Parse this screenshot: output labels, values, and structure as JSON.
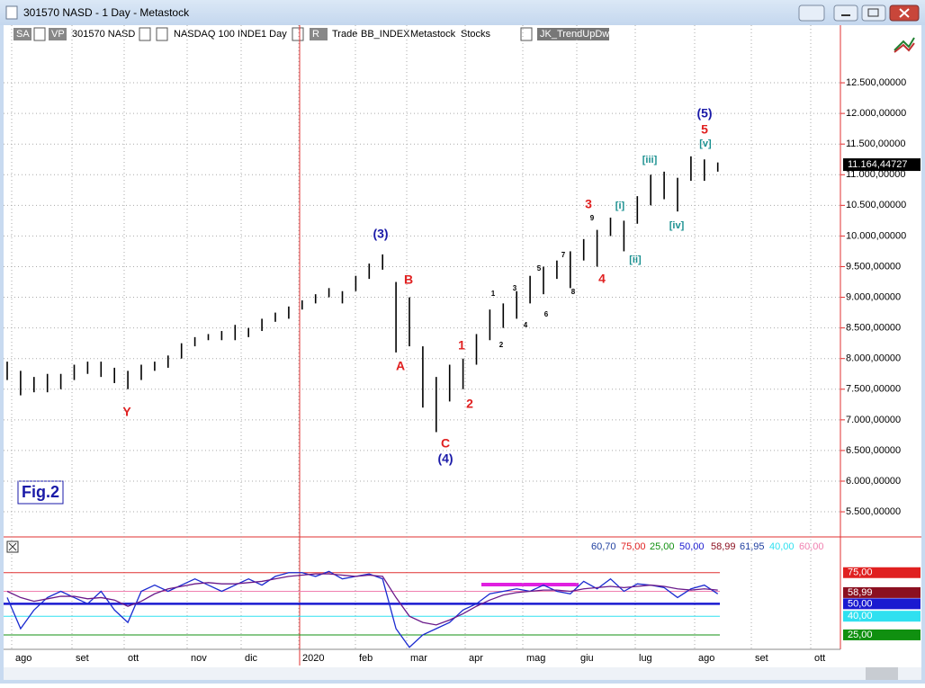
{
  "window": {
    "title": "301570 NASD - 1 Day - Metastock"
  },
  "toolbar": [
    "SA",
    "VP",
    "301570 NASD",
    "NASDAQ 100 INDE",
    "1 Day",
    "R",
    "Trade",
    "BB_INDEX",
    "Metastock",
    "Stocks",
    "JK_TrendUpDw"
  ],
  "figure_label": "Fig.2",
  "price_chart": {
    "type": "bar",
    "ylim": [
      5090,
      13440
    ],
    "yticks": [
      {
        "value": 5500,
        "label": "5.500,00000"
      },
      {
        "value": 6000,
        "label": "6.000,00000"
      },
      {
        "value": 6500,
        "label": "6.500,00000"
      },
      {
        "value": 7000,
        "label": "7.000,00000"
      },
      {
        "value": 7500,
        "label": "7.500,00000"
      },
      {
        "value": 8000,
        "label": "8.000,00000"
      },
      {
        "value": 8500,
        "label": "8.500,00000"
      },
      {
        "value": 9000,
        "label": "9.000,00000"
      },
      {
        "value": 9500,
        "label": "9.500,00000"
      },
      {
        "value": 10000,
        "label": "10.000,00000"
      },
      {
        "value": 10500,
        "label": "10.500,00000"
      },
      {
        "value": 11000,
        "label": "11.000,00000"
      },
      {
        "value": 11500,
        "label": "11.500,00000"
      },
      {
        "value": 12000,
        "label": "12.000,00000"
      },
      {
        "value": 12500,
        "label": "12.500,00000"
      }
    ],
    "grid": true,
    "color": "#000000",
    "high": [
      7950,
      7800,
      7700,
      7750,
      7750,
      7900,
      7950,
      7950,
      7850,
      7800,
      7900,
      7950,
      8050,
      8250,
      8350,
      8400,
      8450,
      8550,
      8500,
      8650,
      8750,
      8850,
      8950,
      9050,
      9150,
      9100,
      9350,
      9550,
      9700,
      9250,
      9000,
      8200,
      7700,
      7900,
      8000,
      8400,
      8800,
      8900,
      9100,
      9350,
      9500,
      9600,
      9750,
      9950,
      10100,
      10300,
      10250,
      10650,
      11000,
      11050,
      10950,
      11300,
      11250,
      11200
    ],
    "low": [
      7650,
      7400,
      7450,
      7450,
      7500,
      7650,
      7750,
      7700,
      7600,
      7500,
      7650,
      7800,
      7850,
      8000,
      8200,
      8300,
      8300,
      8300,
      8350,
      8450,
      8600,
      8650,
      8800,
      8900,
      9000,
      8900,
      9100,
      9300,
      9450,
      8100,
      8200,
      7200,
      6800,
      7300,
      7500,
      7900,
      8300,
      8500,
      8650,
      8900,
      9050,
      9300,
      9150,
      9600,
      9500,
      10000,
      9750,
      10200,
      10500,
      10600,
      10400,
      10900,
      10900,
      11050
    ],
    "last_price": {
      "value": 11164.44727,
      "label": "11.164,44727"
    },
    "wave_labels": [
      {
        "text": "Y",
        "color": "#e02020"
      },
      {
        "text": "(3)",
        "color": "#1a1aa8"
      },
      {
        "text": "B",
        "color": "#e02020"
      },
      {
        "text": "A",
        "color": "#e02020"
      },
      {
        "text": "C",
        "color": "#e02020"
      },
      {
        "text": "(4)",
        "color": "#1a1aa8"
      },
      {
        "text": "1",
        "color": "#e02020"
      },
      {
        "text": "2",
        "color": "#e02020"
      },
      {
        "text": "1",
        "color": "#000000"
      },
      {
        "text": "2",
        "color": "#000000"
      },
      {
        "text": "3",
        "color": "#000000"
      },
      {
        "text": "4",
        "color": "#000000"
      },
      {
        "text": "5",
        "color": "#000000"
      },
      {
        "text": "6",
        "color": "#000000"
      },
      {
        "text": "7",
        "color": "#000000"
      },
      {
        "text": "8",
        "color": "#000000"
      },
      {
        "text": "9",
        "color": "#000000"
      },
      {
        "text": "3",
        "color": "#e02020"
      },
      {
        "text": "4",
        "color": "#e02020"
      },
      {
        "text": "[i]",
        "color": "#1a9090"
      },
      {
        "text": "[ii]",
        "color": "#1a9090"
      },
      {
        "text": "[iii]",
        "color": "#1a9090"
      },
      {
        "text": "[iv]",
        "color": "#1a9090"
      },
      {
        "text": "[v]",
        "color": "#1a9090"
      },
      {
        "text": "5",
        "color": "#e02020"
      },
      {
        "text": "(5)",
        "color": "#1a1aa8"
      }
    ]
  },
  "indicator": {
    "type": "line",
    "ylim": [
      13.4,
      103
    ],
    "header_values": [
      {
        "value": 60.7,
        "label": "60,70",
        "color": "#2040a0"
      },
      {
        "value": 75,
        "label": "75,00",
        "color": "#e02020"
      },
      {
        "value": 25,
        "label": "25,00",
        "color": "#109010"
      },
      {
        "value": 50,
        "label": "50,00",
        "color": "#1a1ad0"
      },
      {
        "value": 58.99,
        "label": "58,99",
        "color": "#8b1020"
      },
      {
        "value": 61.95,
        "label": "61,95",
        "color": "#2040a0"
      },
      {
        "value": 40,
        "label": "40,00",
        "color": "#30e0f0"
      },
      {
        "value": 60,
        "label": "60,00",
        "color": "#f080b0"
      }
    ],
    "series": [
      {
        "color": "#1a2ad0",
        "values": [
          55,
          30,
          45,
          55,
          60,
          55,
          50,
          60,
          45,
          35,
          60,
          65,
          60,
          65,
          70,
          65,
          60,
          65,
          70,
          65,
          72,
          75,
          75,
          72,
          76,
          70,
          72,
          74,
          70,
          30,
          15,
          25,
          30,
          35,
          45,
          50,
          58,
          60,
          62,
          60,
          65,
          60,
          58,
          68,
          62,
          70,
          60,
          66,
          65,
          63,
          55,
          62,
          65,
          58
        ]
      },
      {
        "color": "#6a1a8a",
        "values": [
          60,
          55,
          52,
          54,
          56,
          56,
          54,
          55,
          53,
          48,
          52,
          58,
          62,
          64,
          66,
          67,
          66,
          66,
          67,
          68,
          70,
          72,
          73,
          74,
          74,
          73,
          72,
          73,
          72,
          55,
          40,
          35,
          33,
          37,
          42,
          48,
          53,
          57,
          59,
          60,
          61,
          61,
          60,
          62,
          63,
          64,
          63,
          64,
          65,
          64,
          62,
          61,
          62,
          61
        ]
      }
    ]
  },
  "x_axis": {
    "categories": [
      "ago",
      "set",
      "ott",
      "nov",
      "dic",
      "2020",
      "feb",
      "mar",
      "apr",
      "mag",
      "giu",
      "lug",
      "ago",
      "set",
      "ott"
    ]
  }
}
